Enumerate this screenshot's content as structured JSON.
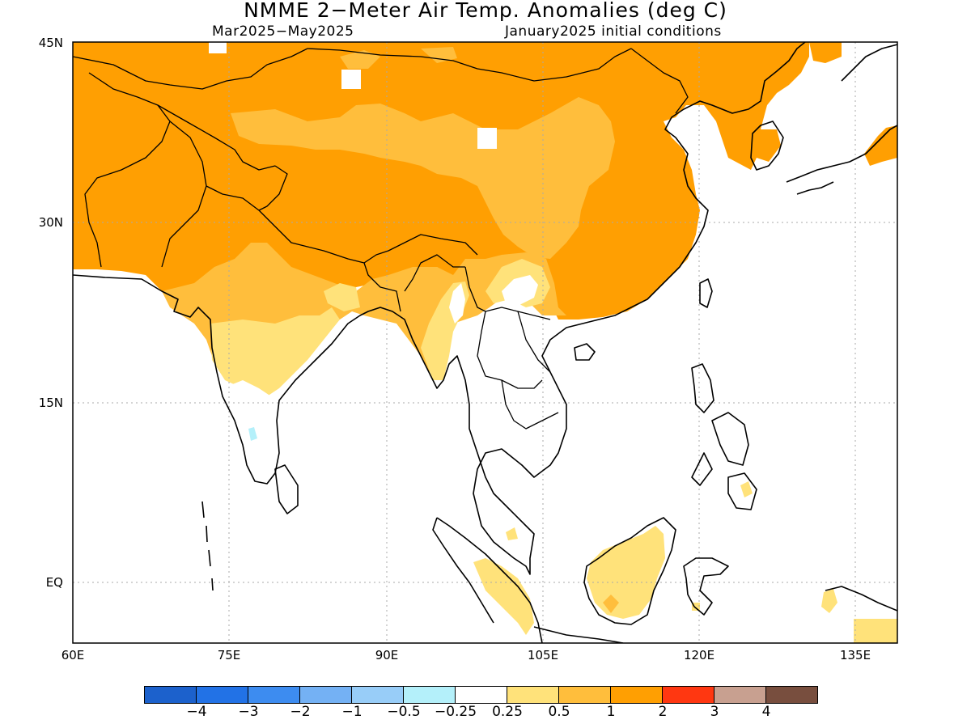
{
  "title": "NMME 2−Meter Air Temp. Anomalies (deg C)",
  "subtitle_left": "Mar2025−May2025",
  "subtitle_right": "January2025 initial conditions",
  "lat_labels": [
    "45N",
    "30N",
    "15N",
    "EQ"
  ],
  "lon_labels": [
    "60E",
    "75E",
    "90E",
    "105E",
    "120E",
    "135E"
  ],
  "colorbar": {
    "colors": [
      "#1c61cc",
      "#2272e6",
      "#3d8cf0",
      "#74b1f4",
      "#98cdf8",
      "#b4f0fa",
      "#ffffff",
      "#ffe27a",
      "#ffbe3c",
      "#ff9f02",
      "#ff3711",
      "#c8a090",
      "#784e3e"
    ],
    "labels": [
      "−4",
      "−3",
      "−2",
      "−1",
      "−0.5",
      "−0.25",
      "0.25",
      "0.5",
      "1",
      "2",
      "3",
      "4"
    ]
  },
  "anomaly_colors": {
    "above_0_25": "#ffe27a",
    "above_0_5": "#ffbe3c",
    "above_1": "#ff9f02",
    "below_minus_0_25": "#b4f0fa"
  }
}
